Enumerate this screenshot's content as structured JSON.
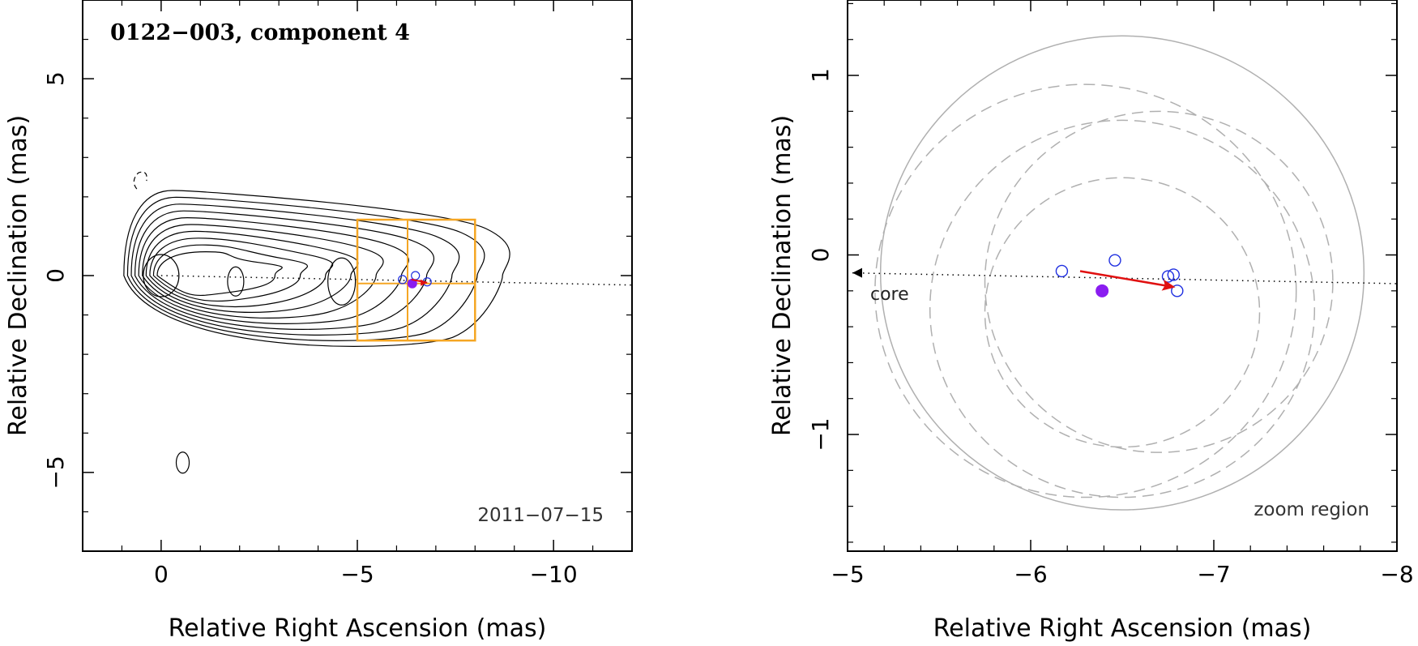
{
  "chart_data": [
    {
      "type": "contour",
      "title": "0122−003, component 4",
      "date": "2011−07−15",
      "xlabel": "Relative Right Ascension (mas)",
      "ylabel": "Relative Declination (mas)",
      "xlim": [
        2,
        -12
      ],
      "ylim": [
        -7,
        7
      ],
      "xticks": [
        {
          "v": 0,
          "t": "0"
        },
        {
          "v": -5,
          "t": "−5"
        },
        {
          "v": -10,
          "t": "−10"
        }
      ],
      "yticks": [
        {
          "v": 5,
          "t": "5"
        },
        {
          "v": 0,
          "t": "0"
        },
        {
          "v": -5,
          "t": "−5"
        }
      ],
      "ridge_line": {
        "from": [
          0,
          0
        ],
        "to": [
          -12,
          -0.24
        ]
      },
      "zoom_box": {
        "x": [
          -5,
          -8
        ],
        "y": [
          -1.65,
          1.42
        ],
        "center": [
          -6.28,
          -0.2
        ]
      },
      "epoch_positions": [
        {
          "x": -6.15,
          "y": -0.1
        },
        {
          "x": -6.48,
          "y": 0.0
        },
        {
          "x": -6.78,
          "y": -0.16
        }
      ],
      "mean_position": {
        "x": -6.4,
        "y": -0.2
      },
      "velocity_vector": {
        "from": [
          -6.38,
          -0.1
        ],
        "to": [
          -6.78,
          -0.18
        ]
      },
      "contour_cores": [
        {
          "x": 0,
          "y": 0
        },
        {
          "x": -1.9,
          "y": -0.15
        },
        {
          "x": -4.6,
          "y": -0.15
        }
      ]
    },
    {
      "type": "scatter",
      "title": "zoom region",
      "xlabel": "Relative Right Ascension (mas)",
      "ylabel": "Relative Declination (mas)",
      "xlim": [
        -5,
        -8
      ],
      "ylim": [
        -1.65,
        1.42
      ],
      "xticks": [
        {
          "v": -5,
          "t": "−5"
        },
        {
          "v": -6,
          "t": "−6"
        },
        {
          "v": -7,
          "t": "−7"
        },
        {
          "v": -8,
          "t": "−8"
        }
      ],
      "yticks": [
        {
          "v": 1,
          "t": "1"
        },
        {
          "v": 0,
          "t": "0"
        },
        {
          "v": -1,
          "t": "−1"
        }
      ],
      "core_label": "core",
      "region_label": "zoom region",
      "ridge_line": {
        "from": [
          -5.0,
          -0.1
        ],
        "to": [
          -8.0,
          -0.16
        ]
      },
      "epoch_positions": [
        {
          "x": -6.17,
          "y": -0.09
        },
        {
          "x": -6.46,
          "y": -0.03
        },
        {
          "x": -6.75,
          "y": -0.12
        },
        {
          "x": -6.78,
          "y": -0.11
        },
        {
          "x": -6.8,
          "y": -0.2
        }
      ],
      "mean_position": {
        "x": -6.39,
        "y": -0.2
      },
      "velocity_vector": {
        "from": [
          -6.27,
          -0.09
        ],
        "to": [
          -6.79,
          -0.18
        ]
      },
      "component_circles": [
        {
          "cx": -6.5,
          "cy": -0.1,
          "r": 1.32,
          "style": "solid"
        },
        {
          "cx": -6.3,
          "cy": -0.2,
          "r": 1.15,
          "style": "dashed"
        },
        {
          "cx": -6.5,
          "cy": -0.3,
          "r": 1.05,
          "style": "dashed"
        },
        {
          "cx": -6.7,
          "cy": -0.15,
          "r": 0.95,
          "style": "dashed"
        },
        {
          "cx": -6.5,
          "cy": -0.32,
          "r": 0.75,
          "style": "dashed"
        }
      ]
    }
  ]
}
